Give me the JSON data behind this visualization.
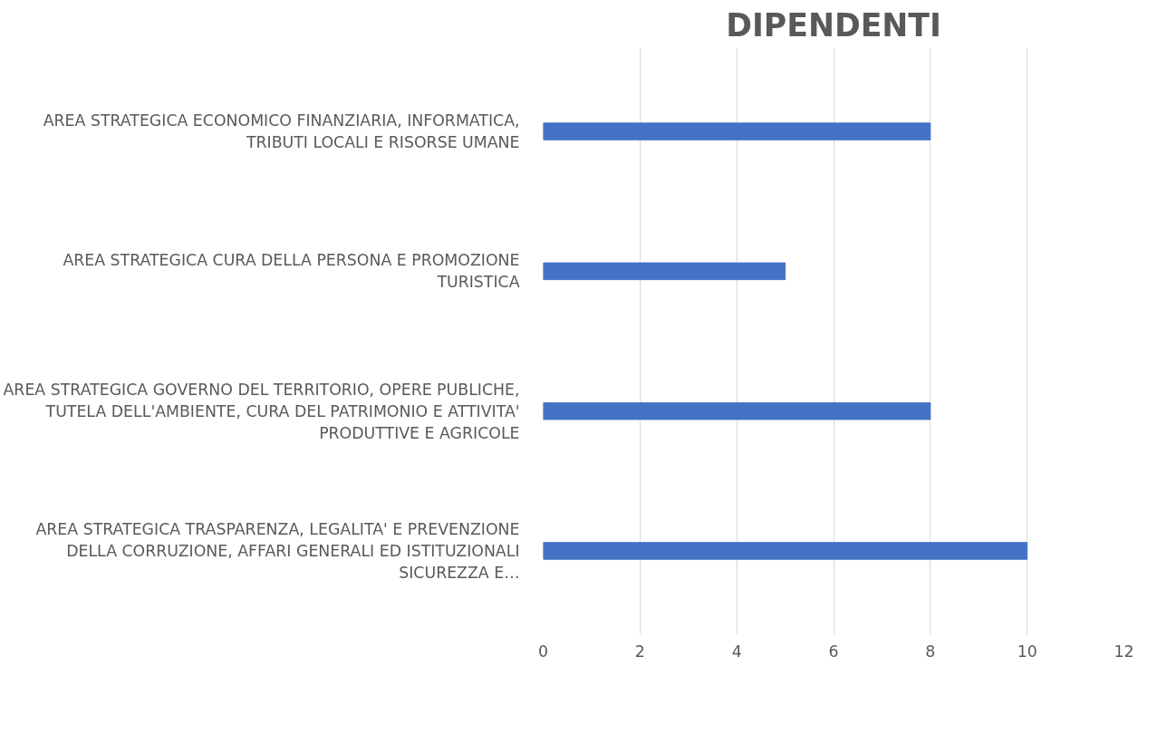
{
  "chart_data": {
    "type": "bar",
    "orientation": "horizontal",
    "title": "DIPENDENTI",
    "categories": [
      "AREA STRATEGICA ECONOMICO FINANZIARIA, INFORMATICA, TRIBUTI LOCALI E RISORSE UMANE",
      "AREA STRATEGICA CURA DELLA PERSONA E PROMOZIONE TURISTICA",
      "AREA STRATEGICA GOVERNO DEL TERRITORIO, OPERE PUBLICHE, TUTELA DELL'AMBIENTE, CURA DEL PATRIMONIO E ATTIVITA' PRODUTTIVE E AGRICOLE",
      "AREA STRATEGICA TRASPARENZA, LEGALITA' E PREVENZIONE DELLA CORRUZIONE, AFFARI GENERALI ED ISTITUZIONALI SICUREZZA E…"
    ],
    "values": [
      8,
      5,
      8,
      10
    ],
    "color": "#4472c4",
    "xlim": [
      0,
      12
    ],
    "xticks": [
      0,
      2,
      4,
      6,
      8,
      10,
      12
    ],
    "grid": "x"
  }
}
